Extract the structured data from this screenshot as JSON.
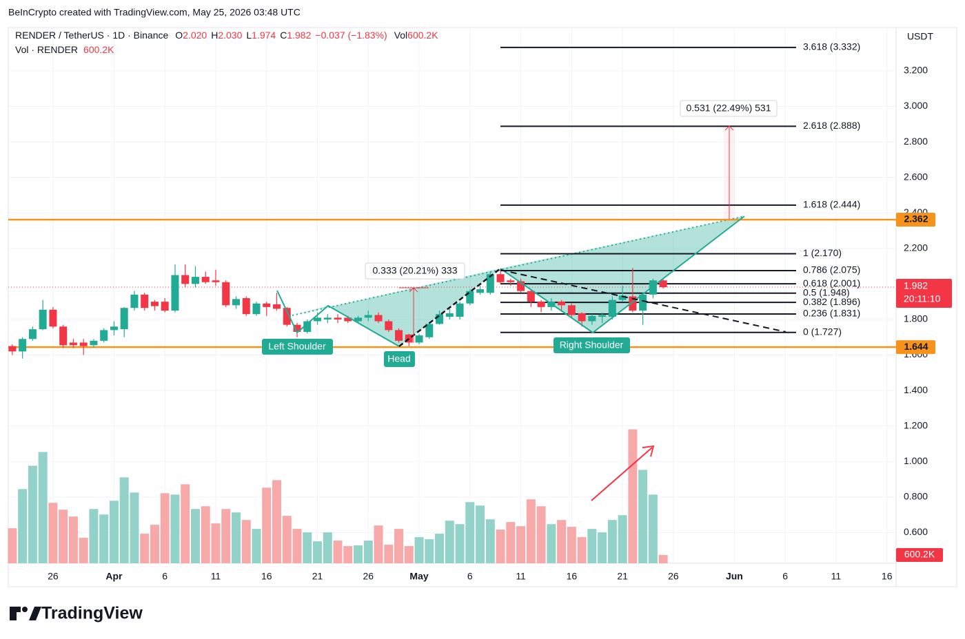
{
  "header": {
    "attribution": "BeInCrypto created with TradingView.com, May 25, 2026 03:48 UTC",
    "symbol": "RENDER / TetherUS · 1D · Binance",
    "ohlc": [
      {
        "key": "O",
        "value": "2.020"
      },
      {
        "key": "H",
        "value": "2.030"
      },
      {
        "key": "L",
        "value": "1.974"
      },
      {
        "key": "C",
        "value": "1.982"
      }
    ],
    "change": "−0.037 (−1.83%)",
    "vol_key": "Vol",
    "vol_value": "600.2K",
    "vol_series": "Vol · RENDER",
    "vol_series_value": "600.2K"
  },
  "chart_data": {
    "type": "candlestick",
    "currency": "USDT",
    "up_color": "#22ab94",
    "down_color": "#f23645",
    "volume_up_color": "#92d2c9",
    "volume_down_color": "#f7a8a8",
    "open": [
      1.65,
      1.62,
      1.69,
      1.745,
      1.855,
      1.76,
      1.67,
      1.67,
      1.655,
      1.68,
      1.74,
      1.745,
      1.865,
      1.94,
      1.9,
      1.9,
      1.85,
      2.05,
      2.0,
      2.04,
      2.02,
      2.01,
      1.88,
      1.92,
      1.83,
      1.89,
      1.885,
      1.865,
      1.77,
      1.73,
      1.79,
      1.8,
      1.81,
      1.81,
      1.79,
      1.81,
      1.825,
      1.79,
      1.74,
      1.715,
      1.67,
      1.7,
      1.775,
      1.815,
      1.815,
      1.89,
      1.95,
      1.95,
      2.055,
      2.02,
      2.015,
      1.96,
      1.9,
      1.87,
      1.9,
      1.88,
      1.835,
      1.79,
      1.815,
      1.815,
      1.91,
      1.93,
      1.85,
      1.94,
      2.02
    ],
    "high": [
      1.66,
      1.7,
      1.76,
      1.91,
      1.87,
      1.77,
      1.69,
      1.69,
      1.69,
      1.75,
      1.79,
      1.87,
      1.96,
      1.95,
      1.91,
      1.92,
      2.11,
      2.11,
      2.1,
      2.07,
      2.08,
      2.02,
      1.93,
      1.93,
      1.9,
      1.9,
      1.95,
      1.87,
      1.78,
      1.8,
      1.84,
      1.83,
      1.83,
      1.82,
      1.82,
      1.85,
      1.84,
      1.8,
      1.75,
      1.72,
      1.72,
      1.78,
      1.85,
      1.86,
      1.9,
      1.97,
      1.99,
      2.07,
      2.08,
      2.03,
      2.03,
      1.97,
      1.91,
      1.92,
      1.91,
      1.89,
      1.84,
      1.83,
      1.84,
      1.93,
      1.99,
      2.09,
      1.95,
      2.03,
      2.03
    ],
    "low": [
      1.6,
      1.58,
      1.68,
      1.74,
      1.75,
      1.64,
      1.64,
      1.6,
      1.64,
      1.67,
      1.71,
      1.7,
      1.85,
      1.85,
      1.85,
      1.84,
      1.84,
      1.98,
      1.98,
      2.0,
      1.99,
      1.87,
      1.86,
      1.82,
      1.82,
      1.82,
      1.85,
      1.76,
      1.7,
      1.72,
      1.77,
      1.78,
      1.78,
      1.78,
      1.78,
      1.79,
      1.78,
      1.73,
      1.67,
      1.65,
      1.66,
      1.69,
      1.77,
      1.8,
      1.8,
      1.88,
      1.94,
      1.94,
      2.0,
      1.99,
      1.95,
      1.87,
      1.84,
      1.85,
      1.85,
      1.81,
      1.76,
      1.77,
      1.78,
      1.8,
      1.9,
      1.84,
      1.77,
      1.92,
      1.974
    ],
    "close": [
      1.62,
      1.69,
      1.745,
      1.855,
      1.76,
      1.655,
      1.655,
      1.65,
      1.68,
      1.74,
      1.76,
      1.865,
      1.94,
      1.865,
      1.875,
      1.85,
      2.05,
      2.0,
      2.04,
      2.01,
      2.01,
      1.88,
      1.915,
      1.83,
      1.89,
      1.87,
      1.86,
      1.77,
      1.73,
      1.79,
      1.81,
      1.81,
      1.8,
      1.79,
      1.81,
      1.825,
      1.79,
      1.74,
      1.68,
      1.67,
      1.71,
      1.775,
      1.83,
      1.835,
      1.89,
      1.96,
      1.97,
      2.055,
      2.01,
      2.01,
      1.96,
      1.9,
      1.87,
      1.9,
      1.88,
      1.825,
      1.79,
      1.82,
      1.825,
      1.91,
      1.935,
      1.85,
      1.94,
      2.02,
      1.982
    ],
    "volume": [
      2550,
      5400,
      7100,
      8100,
      4400,
      3900,
      3400,
      1850,
      3950,
      3550,
      4550,
      6250,
      5150,
      2150,
      2800,
      5100,
      5000,
      5750,
      3950,
      4150,
      2900,
      3950,
      3700,
      3150,
      2500,
      5500,
      6050,
      3450,
      2500,
      2250,
      1600,
      2250,
      1650,
      1250,
      1300,
      1650,
      2750,
      1350,
      2500,
      1250,
      1900,
      1750,
      2150,
      3100,
      2850,
      4450,
      4200,
      3200,
      2450,
      3000,
      2700,
      4650,
      4150,
      2850,
      3150,
      2650,
      1900,
      2500,
      2250,
      3150,
      3500,
      9750,
      6800,
      5000,
      600.2
    ],
    "volume_ylim": [
      0,
      39000
    ],
    "xlim": [
      -0.4,
      86.9
    ],
    "xticks": [
      {
        "value": 4,
        "label": "26"
      },
      {
        "value": 10,
        "label": "Apr"
      },
      {
        "value": 15,
        "label": "6"
      },
      {
        "value": 20,
        "label": "11"
      },
      {
        "value": 25,
        "label": "16"
      },
      {
        "value": 30,
        "label": "21"
      },
      {
        "value": 35,
        "label": "26"
      },
      {
        "value": 40,
        "label": "May"
      },
      {
        "value": 45,
        "label": "6"
      },
      {
        "value": 50,
        "label": "11"
      },
      {
        "value": 55,
        "label": "16"
      },
      {
        "value": 60,
        "label": "21"
      },
      {
        "value": 65,
        "label": "26"
      },
      {
        "value": 71,
        "label": "Jun"
      },
      {
        "value": 76,
        "label": "6"
      },
      {
        "value": 81,
        "label": "11"
      },
      {
        "value": 86,
        "label": "16"
      }
    ],
    "ylim": [
      0.427,
      3.444
    ],
    "yticks": [
      {
        "value": 0.6,
        "label": "0.600"
      },
      {
        "value": 0.8,
        "label": "0.800"
      },
      {
        "value": 1.0,
        "label": "1.000"
      },
      {
        "value": 1.2,
        "label": "1.200"
      },
      {
        "value": 1.4,
        "label": "1.400"
      },
      {
        "value": 1.6,
        "label": "1.600"
      },
      {
        "value": 1.8,
        "label": "1.800"
      },
      {
        "value": 2.2,
        "label": "2.200"
      },
      {
        "value": 2.4,
        "label": "2.400"
      },
      {
        "value": 2.6,
        "label": "2.600"
      },
      {
        "value": 2.8,
        "label": "2.800"
      },
      {
        "value": 3.0,
        "label": "3.000"
      },
      {
        "value": 3.2,
        "label": "3.200"
      }
    ],
    "grid": true,
    "levels": [
      {
        "value": 2.362,
        "label": "2.362",
        "color": "#f7931a"
      },
      {
        "value": 1.644,
        "label": "1.644",
        "color": "#f7931a"
      }
    ],
    "fib": [
      {
        "value": 3.332,
        "label": "3.618 (3.332)"
      },
      {
        "value": 2.888,
        "label": "2.618 (2.888)"
      },
      {
        "value": 2.444,
        "label": "1.618 (2.444)"
      },
      {
        "value": 2.17,
        "label": "1 (2.170)"
      },
      {
        "value": 2.075,
        "label": "0.786 (2.075)"
      },
      {
        "value": 2.001,
        "label": "0.618 (2.001)"
      },
      {
        "value": 1.948,
        "label": "0.5 (1.948)"
      },
      {
        "value": 1.896,
        "label": "0.382 (1.896)"
      },
      {
        "value": 1.831,
        "label": "0.236 (1.831)"
      },
      {
        "value": 1.727,
        "label": "0 (1.727)"
      }
    ],
    "last_price": {
      "value": 1.982,
      "label": "1.982",
      "countdown": "20:11:10"
    },
    "volume_label": "600.2K",
    "annotations": {
      "left_shoulder": "Left Shoulder",
      "head": "Head",
      "right_shoulder": "Right Shoulder",
      "measure_1": "0.333 (20.21%) 333",
      "measure_2": "0.531 (22.49%) 531"
    }
  },
  "brand": "TradingView"
}
